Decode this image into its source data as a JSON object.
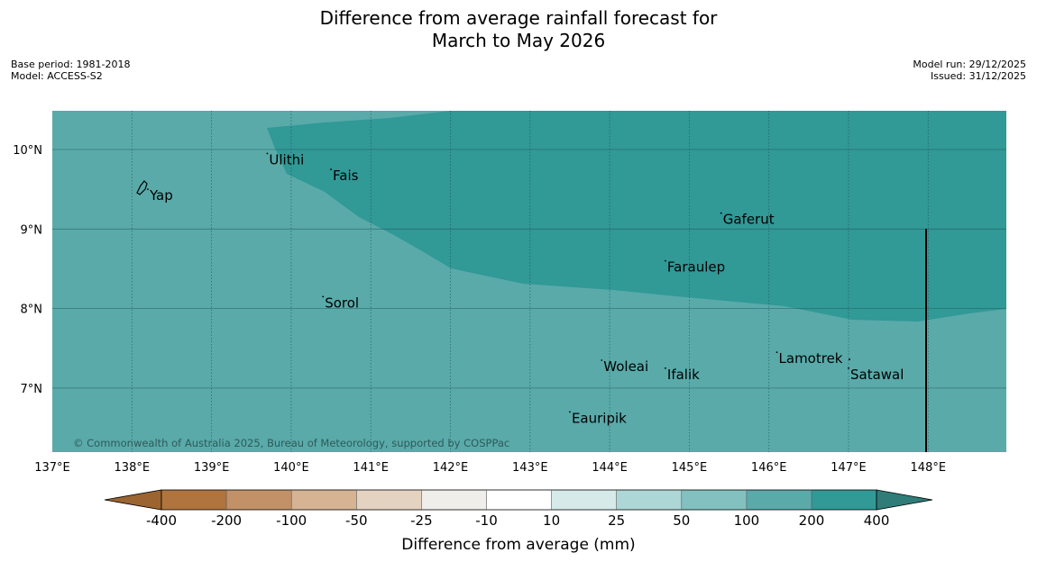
{
  "title": {
    "line1": "Difference from average rainfall forecast for",
    "line2": "March to May 2026"
  },
  "meta": {
    "base_period": "Base period: 1981-2018",
    "model": "Model: ACCESS-S2",
    "model_run": "Model run: 29/12/2025",
    "issued": "Issued: 31/12/2025"
  },
  "map": {
    "lat_labels": [
      "10°N",
      "9°N",
      "8°N",
      "7°N"
    ],
    "lon_labels": [
      "137°E",
      "138°E",
      "139°E",
      "140°E",
      "141°E",
      "142°E",
      "143°E",
      "144°E",
      "145°E",
      "146°E",
      "147°E",
      "148°E"
    ],
    "places": [
      {
        "name": "Yap",
        "lon": 138.2,
        "lat": 9.5
      },
      {
        "name": "Ulithi",
        "lon": 139.7,
        "lat": 9.95
      },
      {
        "name": "Fais",
        "lon": 140.5,
        "lat": 9.75
      },
      {
        "name": "Gaferut",
        "lon": 145.4,
        "lat": 9.2
      },
      {
        "name": "Faraulep",
        "lon": 144.7,
        "lat": 8.6
      },
      {
        "name": "Sorol",
        "lon": 140.4,
        "lat": 8.15
      },
      {
        "name": "Woleai",
        "lon": 143.9,
        "lat": 7.35
      },
      {
        "name": "Ifalik",
        "lon": 144.7,
        "lat": 7.25
      },
      {
        "name": "Lamotrek",
        "lon": 146.1,
        "lat": 7.45
      },
      {
        "name": "Satawal",
        "lon": 147.0,
        "lat": 7.25
      },
      {
        "name": "Eauripik",
        "lon": 143.5,
        "lat": 6.7
      }
    ],
    "copyright": "© Commonwealth of Australia 2025, Bureau of Meteorology, supported by COSPPac",
    "colors": {
      "base": "#5aaaaa",
      "wetter": "#319996",
      "grid": "#1e5555"
    }
  },
  "legend": {
    "label": "Difference from average (mm)",
    "ticks": [
      "-400",
      "-200",
      "-100",
      "-50",
      "-25",
      "-10",
      "10",
      "25",
      "50",
      "100",
      "200",
      "400"
    ],
    "colors": [
      "#9c6430",
      "#b0743e",
      "#c29168",
      "#d6b393",
      "#e5d3c2",
      "#f0eeea",
      "#ffffff",
      "#d6eaea",
      "#acd7d6",
      "#82c1bf",
      "#5aaaaa",
      "#319996",
      "#2f7c79"
    ]
  }
}
